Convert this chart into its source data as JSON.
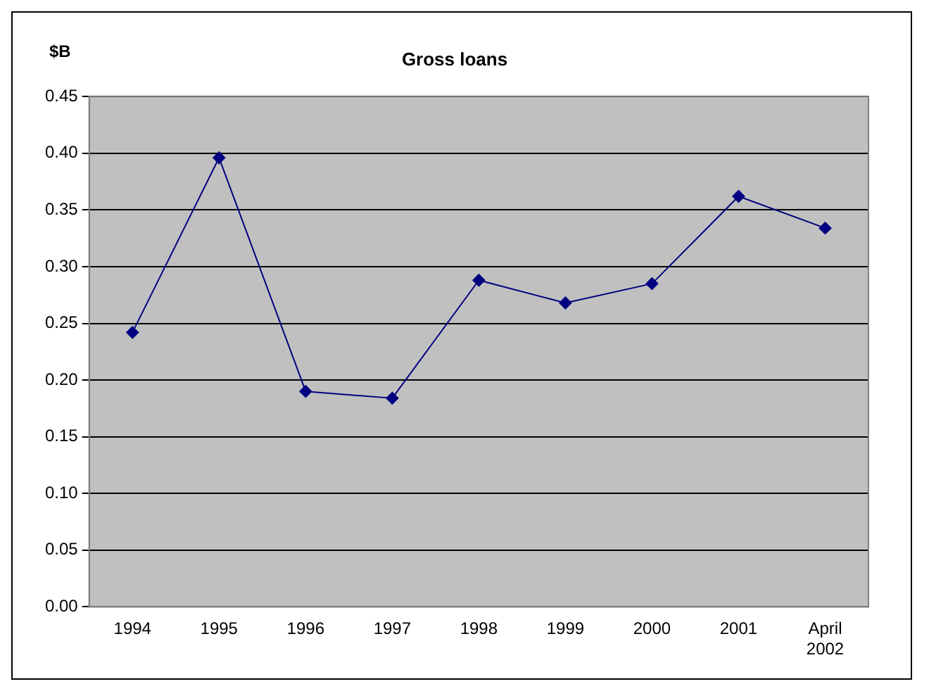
{
  "chart_data": {
    "type": "line",
    "title": "Gross loans",
    "ylabel": "$B",
    "categories": [
      "1994",
      "1995",
      "1996",
      "1997",
      "1998",
      "1999",
      "2000",
      "2001",
      "April 2002"
    ],
    "series": [
      {
        "color": "#000080",
        "values": [
          0.242,
          0.396,
          0.19,
          0.184,
          0.288,
          0.268,
          0.285,
          0.362,
          0.334
        ]
      }
    ],
    "ylim": [
      0,
      0.45
    ],
    "yticks": [
      {
        "value": 0,
        "label": "0.00"
      },
      {
        "value": 0.05,
        "label": "0.05"
      },
      {
        "value": 0.1,
        "label": "0.10"
      },
      {
        "value": 0.15,
        "label": "0.15"
      },
      {
        "value": 0.2,
        "label": "0.20"
      },
      {
        "value": 0.25,
        "label": "0.25"
      },
      {
        "value": 0.3,
        "label": "0.30"
      },
      {
        "value": 0.35,
        "label": "0.35"
      },
      {
        "value": 0.4,
        "label": "0.40"
      },
      {
        "value": 0.45,
        "label": "0.45"
      }
    ],
    "grid": "y",
    "marker": "diamond",
    "line_style": "solid",
    "legend": false
  }
}
